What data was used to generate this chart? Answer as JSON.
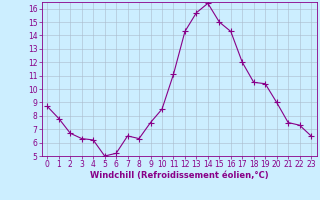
{
  "x": [
    0,
    1,
    2,
    3,
    4,
    5,
    6,
    7,
    8,
    9,
    10,
    11,
    12,
    13,
    14,
    15,
    16,
    17,
    18,
    19,
    20,
    21,
    22,
    23
  ],
  "y": [
    8.7,
    7.8,
    6.7,
    6.3,
    6.2,
    5.0,
    5.2,
    6.5,
    6.3,
    7.5,
    8.5,
    11.1,
    14.3,
    15.7,
    16.4,
    15.0,
    14.3,
    12.0,
    10.5,
    10.4,
    9.0,
    7.5,
    7.3,
    6.5
  ],
  "line_color": "#880088",
  "marker": "+",
  "marker_size": 4,
  "background_color": "#cceeff",
  "grid_color": "#aabbcc",
  "xlabel": "Windchill (Refroidissement éolien,°C)",
  "xlabel_color": "#880088",
  "tick_color": "#880088",
  "ylim": [
    5,
    16.5
  ],
  "xlim": [
    -0.5,
    23.5
  ],
  "yticks": [
    5,
    6,
    7,
    8,
    9,
    10,
    11,
    12,
    13,
    14,
    15,
    16
  ],
  "xticks": [
    0,
    1,
    2,
    3,
    4,
    5,
    6,
    7,
    8,
    9,
    10,
    11,
    12,
    13,
    14,
    15,
    16,
    17,
    18,
    19,
    20,
    21,
    22,
    23
  ],
  "spine_color": "#880088",
  "axis_bg_color": "#cceeff",
  "tick_fontsize": 5.5,
  "xlabel_fontsize": 6.0
}
